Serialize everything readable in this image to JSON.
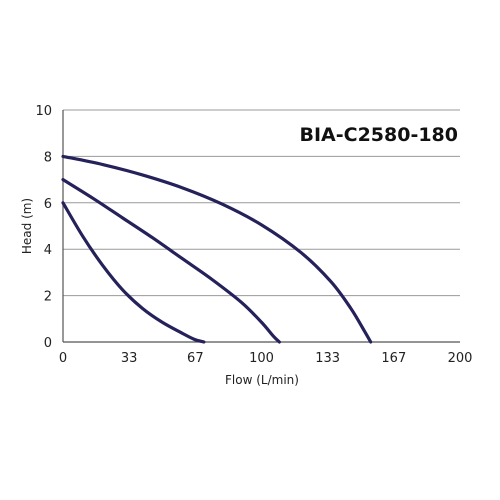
{
  "chart_data": {
    "type": "line",
    "title": "BIA-C2580-180",
    "xlabel": "Flow (L/min)",
    "ylabel": "Head (m)",
    "xlim": [
      0,
      200
    ],
    "ylim": [
      0,
      10
    ],
    "x_ticks": [
      "0",
      "33",
      "67",
      "100",
      "133",
      "167",
      "200"
    ],
    "y_ticks": [
      "0",
      "2",
      "4",
      "6",
      "8",
      "10"
    ],
    "grid": "horizontal",
    "colors": {
      "series": "#25215a",
      "grid": "#9a9a9a",
      "axis": "#555555"
    },
    "series": [
      {
        "x": [
          0,
          10,
          20,
          30,
          40,
          50,
          60,
          66,
          71
        ],
        "y": [
          6.0,
          4.55,
          3.3,
          2.25,
          1.45,
          0.85,
          0.38,
          0.12,
          0.0
        ]
      },
      {
        "x": [
          0,
          15,
          30,
          45,
          60,
          75,
          90,
          100,
          106,
          109
        ],
        "y": [
          7.0,
          6.2,
          5.35,
          4.5,
          3.6,
          2.7,
          1.7,
          0.85,
          0.25,
          0.0
        ]
      },
      {
        "x": [
          0,
          20,
          40,
          60,
          80,
          100,
          120,
          135,
          145,
          152,
          155
        ],
        "y": [
          8.0,
          7.65,
          7.2,
          6.65,
          5.95,
          5.05,
          3.85,
          2.6,
          1.45,
          0.45,
          0.0
        ]
      }
    ]
  }
}
